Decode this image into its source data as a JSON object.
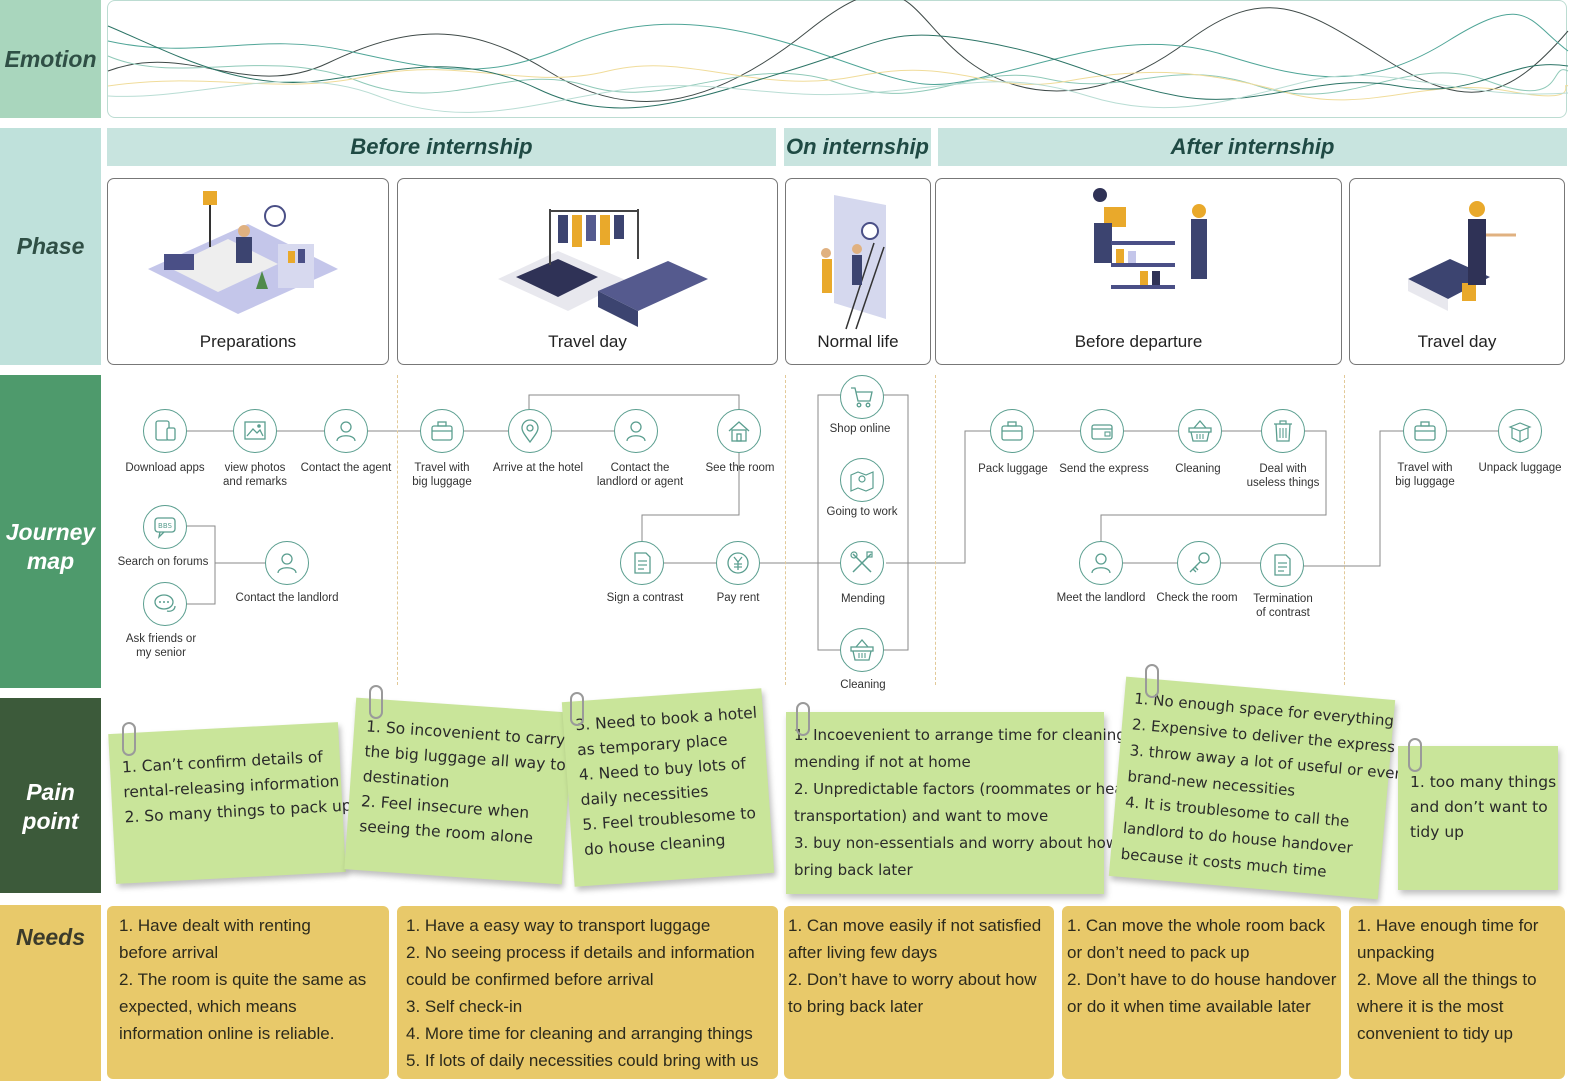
{
  "rows": {
    "emotion": "Emotion",
    "phase": "Phase",
    "journey": [
      "Journey",
      "map"
    ],
    "pain": [
      "Pain",
      "point"
    ],
    "needs": "Needs"
  },
  "phases": {
    "before": "Before internship",
    "on": "On internship",
    "after": "After internship"
  },
  "cards": {
    "preparations": "Preparations",
    "travel_day_1": "Travel day",
    "normal_life": "Normal life",
    "before_departure": "Before departure",
    "travel_day_2": "Travel day"
  },
  "journey": {
    "download_apps": "Download apps",
    "view_photos": [
      "view photos",
      "and remarks"
    ],
    "contact_agent": "Contact the agent",
    "search_forums": "Search on forums",
    "ask_friends": [
      "Ask friends or",
      "my senior"
    ],
    "contact_landlord": "Contact the landlord",
    "travel_luggage_1": [
      "Travel with",
      "big luggage"
    ],
    "arrive_hotel": "Arrive at the hotel",
    "contact_landlord_agent": [
      "Contact the",
      "landlord or agent"
    ],
    "see_room": "See the room",
    "sign_contract": "Sign a contrast",
    "pay_rent": "Pay rent",
    "shop_online": "Shop online",
    "going_work": "Going to work",
    "mending": "Mending",
    "cleaning_1": "Cleaning",
    "pack_luggage": "Pack luggage",
    "send_express": "Send the express",
    "cleaning_2": "Cleaning",
    "deal_useless": [
      "Deal with",
      "useless things"
    ],
    "meet_landlord": "Meet the landlord",
    "check_room": "Check the room",
    "termination": [
      "Termination",
      "of contrast"
    ],
    "travel_luggage_2": [
      "Travel with",
      "big luggage"
    ],
    "unpack_luggage": "Unpack luggage",
    "bbs": "BBS"
  },
  "pain_points": {
    "p1": [
      "1. Can’t confirm details of",
      "rental-releasing information",
      "2. So many things to pack up"
    ],
    "p2": [
      "1. So incovenient to carry",
      "the big luggage all way to",
      "destination",
      "2. Feel insecure when",
      "seeing the room alone"
    ],
    "p3": [
      "3. Need to book a hotel",
      "as temporary place",
      "4.  Need to buy lots of",
      "daily necessities",
      "5. Feel troublesome to",
      "do house cleaning"
    ],
    "p4": [
      "1. Incoevenient to arrange time for cleaning or",
      "mending if not at home",
      "2. Unpredictable factors (roommates or heavy",
      "transportation) and want to move",
      "3. buy non-essentials and worry about how to",
      "bring back later"
    ],
    "p5": [
      "1. No enough space for everything",
      "2. Expensive to deliver the express",
      "3. throw away a lot of useful or even",
      "brand-new necessities",
      "4. It is troublesome to call the",
      "landlord to do house handover",
      "because it costs much time"
    ],
    "p6": [
      "1. too many things",
      "and don’t want to",
      "tidy up"
    ]
  },
  "needs": {
    "n1": [
      "1. Have dealt with renting",
      "before arrival",
      "2. The room is quite the same as",
      "expected, which means",
      "information online is reliable."
    ],
    "n2": [
      "1. Have a easy way to transport luggage",
      "2. No seeing process if details and information",
      "could be confirmed before arrival",
      "3. Self check-in",
      "4. More time for cleaning and arranging things",
      "5. If lots of daily necessities could bring with us"
    ],
    "n3": [
      "1. Can move easily if not satisfied",
      "after living few days",
      "2. Don’t have to worry about how",
      "to bring back later"
    ],
    "n4": [
      "1. Can move the whole room back",
      "or don’t need to pack up",
      "2. Don’t have to do house handover",
      "or do it when time available  later"
    ],
    "n5": [
      "1. Have enough time for",
      "unpacking",
      "2. Move all the things to",
      "where it is the most",
      "convenient to tidy up"
    ]
  },
  "colors": {
    "emotion_label_bg": "#a9d6bd",
    "phase_label_bg": "#bfe1db",
    "journey_label_bg": "#4e9a6c",
    "pain_label_bg": "#3c5a3a",
    "needs_label_bg": "#e8c96a",
    "node_stroke": "#5a9e8f",
    "note_green": "#c9e59a",
    "needs_yellow": "#e8c96a"
  }
}
